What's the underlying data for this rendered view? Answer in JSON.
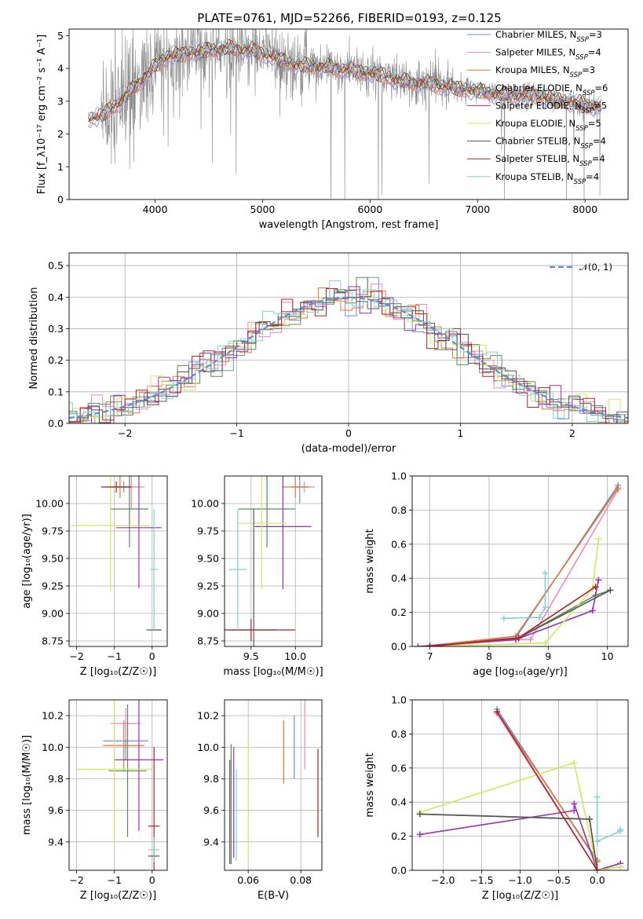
{
  "title": "PLATE=0761, MJD=52266, FIBERID=0193, z=0.125",
  "colors": {
    "Chabrier MILES": "#6b8fd6",
    "Salpeter MILES": "#ee88c0",
    "Kroupa MILES": "#e07a30",
    "Chabrier ELODIE": "#5a8a5a",
    "Salpeter ELODIE": "#9b30b0",
    "Kroupa ELODIE": "#d0e860",
    "Chabrier STELIB": "#555555",
    "Salpeter STELIB": "#b22222",
    "Kroupa STELIB": "#80d0d8",
    "data": "#8a8a8a",
    "normal": "#5b8fd0"
  },
  "chart_data": [
    {
      "id": "spectrum",
      "type": "line",
      "title": "PLATE=0761, MJD=52266, FIBERID=0193, z=0.125",
      "xlabel": "wavelength [Angstrom, rest frame]",
      "ylabel": "Flux [f_λ10⁻¹⁷ erg cm⁻² s⁻¹ A⁻¹]",
      "xlim": [
        3200,
        8400
      ],
      "ylim": [
        0,
        5.2
      ],
      "xticks": [
        "4000",
        "5000",
        "6000",
        "7000",
        "8000"
      ],
      "yticks": [
        "0",
        "1",
        "2",
        "3",
        "4",
        "5"
      ],
      "legend_position": "upper right",
      "series": [
        {
          "name": "Chabrier MILES, N_SSP=3"
        },
        {
          "name": "Salpeter MILES, N_SSP=4"
        },
        {
          "name": "Kroupa MILES, N_SSP=3"
        },
        {
          "name": "Chabrier ELODIE, N_SSP=6"
        },
        {
          "name": "Salpeter ELODIE, N_SSP=5"
        },
        {
          "name": "Kroupa ELODIE, N_SSP=5"
        },
        {
          "name": "Chabrier STELIB, N_SSP=4"
        },
        {
          "name": "Salpeter STELIB, N_SSP=4"
        },
        {
          "name": "Kroupa STELIB, N_SSP=4"
        }
      ],
      "continuum": {
        "x": [
          3380,
          3500,
          3650,
          3800,
          3950,
          4100,
          4300,
          4500,
          4700,
          4900,
          5100,
          5300,
          5500,
          5700,
          5900,
          6100,
          6300,
          6500,
          6700,
          6900,
          7100,
          7300,
          7500,
          7700,
          7900,
          8100
        ],
        "y": [
          2.45,
          2.55,
          2.9,
          3.4,
          3.9,
          4.35,
          4.45,
          4.55,
          4.6,
          4.55,
          4.35,
          4.1,
          4.05,
          4.0,
          3.9,
          3.8,
          3.6,
          3.55,
          3.45,
          3.35,
          3.25,
          3.15,
          3.2,
          3.05,
          2.95,
          2.85
        ]
      }
    },
    {
      "id": "residuals",
      "type": "histogram",
      "xlabel": "(data-model)/error",
      "ylabel": "Normed distribution",
      "xlim": [
        -2.5,
        2.5
      ],
      "ylim": [
        0,
        0.54
      ],
      "xticks": [
        "−2",
        "−1",
        "0",
        "1",
        "2"
      ],
      "yticks": [
        "0.0",
        "0.1",
        "0.2",
        "0.3",
        "0.4",
        "0.5"
      ],
      "grid": true,
      "legend": "𝒩(0, 1)",
      "legend_position": "upper right"
    },
    {
      "id": "age_vs_Z",
      "type": "errorbar",
      "xlabel": "Z [log₁₀(Z/Z☉)]",
      "ylabel": "age  [log₁₀(age/yr)]",
      "xlim": [
        -2.2,
        0.4
      ],
      "ylim": [
        8.7,
        10.25
      ],
      "xticks": [
        "−2",
        "−1",
        "0"
      ],
      "yticks": [
        "8.75",
        "9.00",
        "9.25",
        "9.50",
        "9.75",
        "10.00"
      ],
      "grid": true,
      "points": [
        {
          "series": "Chabrier MILES",
          "x": -0.75,
          "y": 10.15,
          "xerr": 0.45,
          "yerr": 0.05
        },
        {
          "series": "Salpeter MILES",
          "x": -0.55,
          "y": 10.15,
          "xerr": 0.35,
          "yerr": 0.2
        },
        {
          "series": "Kroupa MILES",
          "x": -0.85,
          "y": 10.15,
          "xerr": 0.3,
          "yerr": 0.1
        },
        {
          "series": "Chabrier ELODIE",
          "x": -0.6,
          "y": 9.95,
          "xerr": 0.5,
          "yerr": 0.35
        },
        {
          "series": "Salpeter ELODIE",
          "x": -0.35,
          "y": 9.78,
          "xerr": 0.6,
          "yerr": 0.55
        },
        {
          "series": "Kroupa ELODIE",
          "x": -1.1,
          "y": 9.8,
          "xerr": 1.05,
          "yerr": 0.6
        },
        {
          "series": "Chabrier STELIB",
          "x": 0.05,
          "y": 8.85,
          "xerr": 0.2,
          "yerr": 0.0
        },
        {
          "series": "Salpeter STELIB",
          "x": -0.95,
          "y": 10.15,
          "xerr": 0.4,
          "yerr": 0.05
        },
        {
          "series": "Kroupa STELIB",
          "x": 0.05,
          "y": 9.4,
          "xerr": 0.1,
          "yerr": 0.55
        }
      ]
    },
    {
      "id": "age_vs_mass",
      "type": "errorbar",
      "xlabel": "mass [log₁₀(M/M☉)]",
      "ylabel": "",
      "xlim": [
        9.2,
        10.3
      ],
      "ylim": [
        8.7,
        10.25
      ],
      "xticks": [
        "9.5",
        "10.0"
      ],
      "yticks": [
        "8.75",
        "9.00",
        "9.25",
        "9.50",
        "9.75",
        "10.00"
      ],
      "grid": true,
      "points": [
        {
          "series": "Chabrier MILES",
          "x": 10.05,
          "y": 10.15,
          "xerr": 0.1,
          "yerr": 0.15
        },
        {
          "series": "Salpeter MILES",
          "x": 10.1,
          "y": 10.15,
          "xerr": 0.12,
          "yerr": 0.05
        },
        {
          "series": "Kroupa MILES",
          "x": 10.0,
          "y": 10.15,
          "xerr": 0.15,
          "yerr": 0.1
        },
        {
          "series": "Chabrier ELODIE",
          "x": 9.68,
          "y": 9.95,
          "xerr": 0.32,
          "yerr": 0.35
        },
        {
          "series": "Salpeter ELODIE",
          "x": 9.86,
          "y": 9.79,
          "xerr": 0.32,
          "yerr": 0.57
        },
        {
          "series": "Kroupa ELODIE",
          "x": 9.62,
          "y": 9.82,
          "xerr": 0.28,
          "yerr": 0.6
        },
        {
          "series": "Chabrier STELIB",
          "x": 9.53,
          "y": 8.85,
          "xerr": 0.27,
          "yerr": 1.1
        },
        {
          "series": "Salpeter STELIB",
          "x": 9.5,
          "y": 8.85,
          "xerr": 0.5,
          "yerr": 0.1
        },
        {
          "series": "Kroupa STELIB",
          "x": 9.35,
          "y": 9.4,
          "xerr": 0.1,
          "yerr": 0.55
        }
      ]
    },
    {
      "id": "mass_weight_vs_age",
      "type": "line",
      "xlabel": "age  [log₁₀(age/yr)]",
      "ylabel": "mass weight",
      "xlim": [
        6.7,
        10.35
      ],
      "ylim": [
        0,
        1.0
      ],
      "xticks": [
        "7",
        "8",
        "9",
        "10"
      ],
      "yticks": [
        "0.0",
        "0.2",
        "0.4",
        "0.6",
        "0.8",
        "1.0"
      ],
      "grid": true,
      "series": [
        {
          "name": "Chabrier MILES",
          "x": [
            7.0,
            8.45,
            10.18
          ],
          "y": [
            0.005,
            0.05,
            0.945
          ]
        },
        {
          "name": "Salpeter MILES",
          "x": [
            7.0,
            8.5,
            8.7,
            10.18
          ],
          "y": [
            0.0,
            0.04,
            0.04,
            0.92
          ]
        },
        {
          "name": "Kroupa MILES",
          "x": [
            7.0,
            8.45,
            10.18
          ],
          "y": [
            0.005,
            0.06,
            0.93
          ]
        },
        {
          "name": "Chabrier ELODIE",
          "x": [
            7.0,
            8.45,
            9.8,
            10.05
          ],
          "y": [
            0.005,
            0.04,
            0.3,
            0.33
          ]
        },
        {
          "name": "Salpeter ELODIE",
          "x": [
            6.8,
            8.45,
            9.75,
            9.85
          ],
          "y": [
            0.0,
            0.04,
            0.21,
            0.39
          ]
        },
        {
          "name": "Kroupa ELODIE",
          "x": [
            7.0,
            8.95,
            9.75,
            9.85
          ],
          "y": [
            0.0,
            0.02,
            0.34,
            0.63
          ]
        },
        {
          "name": "Chabrier STELIB",
          "x": [
            7.0,
            8.5,
            10.05
          ],
          "y": [
            0.0,
            0.05,
            0.33
          ]
        },
        {
          "name": "Salpeter STELIB",
          "x": [
            7.0,
            8.5,
            9.8
          ],
          "y": [
            0.0,
            0.05,
            0.35
          ]
        },
        {
          "name": "Kroupa STELIB",
          "x": [
            8.25,
            8.85,
            8.95,
            8.95
          ],
          "y": [
            0.165,
            0.17,
            0.23,
            0.43
          ]
        }
      ]
    },
    {
      "id": "mass_vs_Z",
      "type": "errorbar",
      "xlabel": "Z [log₁₀(Z/Z☉)]",
      "ylabel": "mass [log₁₀(M/M☉)]",
      "xlim": [
        -2.2,
        0.4
      ],
      "ylim": [
        9.22,
        10.3
      ],
      "xticks": [
        "−2",
        "−1",
        "0"
      ],
      "yticks": [
        "9.4",
        "9.6",
        "9.8",
        "10.0",
        "10.2"
      ],
      "grid": true,
      "points": [
        {
          "series": "Chabrier MILES",
          "x": -0.7,
          "y": 10.04,
          "xerr": 0.6,
          "yerr": 0.12
        },
        {
          "series": "Salpeter MILES",
          "x": -0.7,
          "y": 10.15,
          "xerr": 0.4,
          "yerr": 0.1
        },
        {
          "series": "Kroupa MILES",
          "x": -0.75,
          "y": 10.01,
          "xerr": 0.55,
          "yerr": 0.16
        },
        {
          "series": "Chabrier ELODIE",
          "x": -0.65,
          "y": 9.85,
          "xerr": 0.5,
          "yerr": 0.42
        },
        {
          "series": "Salpeter ELODIE",
          "x": -0.35,
          "y": 9.92,
          "xerr": 0.65,
          "yerr": 0.45
        },
        {
          "series": "Kroupa ELODIE",
          "x": -1.0,
          "y": 9.86,
          "xerr": 1.0,
          "yerr": 0.5
        },
        {
          "series": "Chabrier STELIB",
          "x": 0.05,
          "y": 9.31,
          "xerr": 0.15,
          "yerr": 0.05
        },
        {
          "series": "Salpeter STELIB",
          "x": 0.05,
          "y": 9.5,
          "xerr": 0.15,
          "yerr": 0.5
        },
        {
          "series": "Kroupa STELIB",
          "x": 0.05,
          "y": 9.35,
          "xerr": 0.15,
          "yerr": 0.08
        }
      ]
    },
    {
      "id": "mass_vs_ebv",
      "type": "errorbar",
      "xlabel": "E(B-V)",
      "ylabel": "",
      "xlim": [
        0.051,
        0.088
      ],
      "ylim": [
        9.22,
        10.3
      ],
      "xticks": [
        "0.06",
        "0.08"
      ],
      "yticks": [
        "9.4",
        "9.6",
        "9.8",
        "10.0",
        "10.2"
      ],
      "grid": true,
      "points": [
        {
          "series": "Chabrier MILES",
          "x": 0.0775,
          "y": 10.0,
          "xerr": 0.0,
          "yerr": 0.2
        },
        {
          "series": "Salpeter MILES",
          "x": 0.0815,
          "y": 10.08,
          "xerr": 0.0,
          "yerr": 0.22
        },
        {
          "series": "Kroupa MILES",
          "x": 0.0735,
          "y": 9.97,
          "xerr": 0.0,
          "yerr": 0.2
        },
        {
          "series": "Chabrier ELODIE",
          "x": 0.0535,
          "y": 9.64,
          "xerr": 0.0,
          "yerr": 0.38
        },
        {
          "series": "Salpeter ELODIE",
          "x": 0.0545,
          "y": 9.65,
          "xerr": 0.0,
          "yerr": 0.35
        },
        {
          "series": "Kroupa ELODIE",
          "x": 0.06,
          "y": 9.66,
          "xerr": 0.0,
          "yerr": 0.38
        },
        {
          "series": "Chabrier STELIB",
          "x": 0.053,
          "y": 9.59,
          "xerr": 0.0,
          "yerr": 0.33
        },
        {
          "series": "Salpeter STELIB",
          "x": 0.0865,
          "y": 9.71,
          "xerr": 0.0,
          "yerr": 0.28
        },
        {
          "series": "Kroupa STELIB",
          "x": 0.0555,
          "y": 9.57,
          "xerr": 0.0,
          "yerr": 0.29
        }
      ]
    },
    {
      "id": "mass_weight_vs_Z",
      "type": "line",
      "xlabel": "Z [log₁₀(Z/Z☉)]",
      "ylabel": "mass weight",
      "xlim": [
        -2.4,
        0.4
      ],
      "ylim": [
        0,
        1.0
      ],
      "xticks": [
        "−2.0",
        "−1.5",
        "−1.0",
        "−0.5",
        "0.0"
      ],
      "yticks": [
        "0.0",
        "0.2",
        "0.4",
        "0.6",
        "0.8",
        "1.0"
      ],
      "grid": true,
      "series": [
        {
          "name": "Chabrier MILES",
          "x": [
            -1.3,
            0.0,
            0.0
          ],
          "y": [
            0.945,
            0.05,
            0.0
          ]
        },
        {
          "name": "Salpeter MILES",
          "x": [
            -1.3,
            0.0,
            0.3
          ],
          "y": [
            0.92,
            0.0,
            0.04
          ]
        },
        {
          "name": "Kroupa MILES",
          "x": [
            -1.3,
            0.0,
            0.0
          ],
          "y": [
            0.93,
            0.06,
            0.0
          ]
        },
        {
          "name": "Chabrier ELODIE",
          "x": [
            -2.3,
            -0.1,
            0.0,
            0.3
          ],
          "y": [
            0.33,
            0.3,
            0.0,
            0.02
          ]
        },
        {
          "name": "Salpeter ELODIE",
          "x": [
            -2.3,
            -0.3,
            -0.3,
            0.0,
            0.3
          ],
          "y": [
            0.21,
            0.35,
            0.39,
            0.0,
            0.04
          ]
        },
        {
          "name": "Kroupa ELODIE",
          "x": [
            -2.3,
            -0.3,
            0.0,
            0.3
          ],
          "y": [
            0.34,
            0.63,
            0.0,
            0.02
          ]
        },
        {
          "name": "Chabrier STELIB",
          "x": [
            -2.3,
            -0.1,
            0.0
          ],
          "y": [
            0.33,
            0.3,
            0.0
          ]
        },
        {
          "name": "Salpeter STELIB",
          "x": [
            -1.3,
            0.0
          ],
          "y": [
            0.93,
            0.0
          ]
        },
        {
          "name": "Kroupa STELIB",
          "x": [
            0.0,
            0.0,
            0.3,
            0.3
          ],
          "y": [
            0.43,
            0.17,
            0.23,
            0.24
          ]
        }
      ]
    }
  ]
}
